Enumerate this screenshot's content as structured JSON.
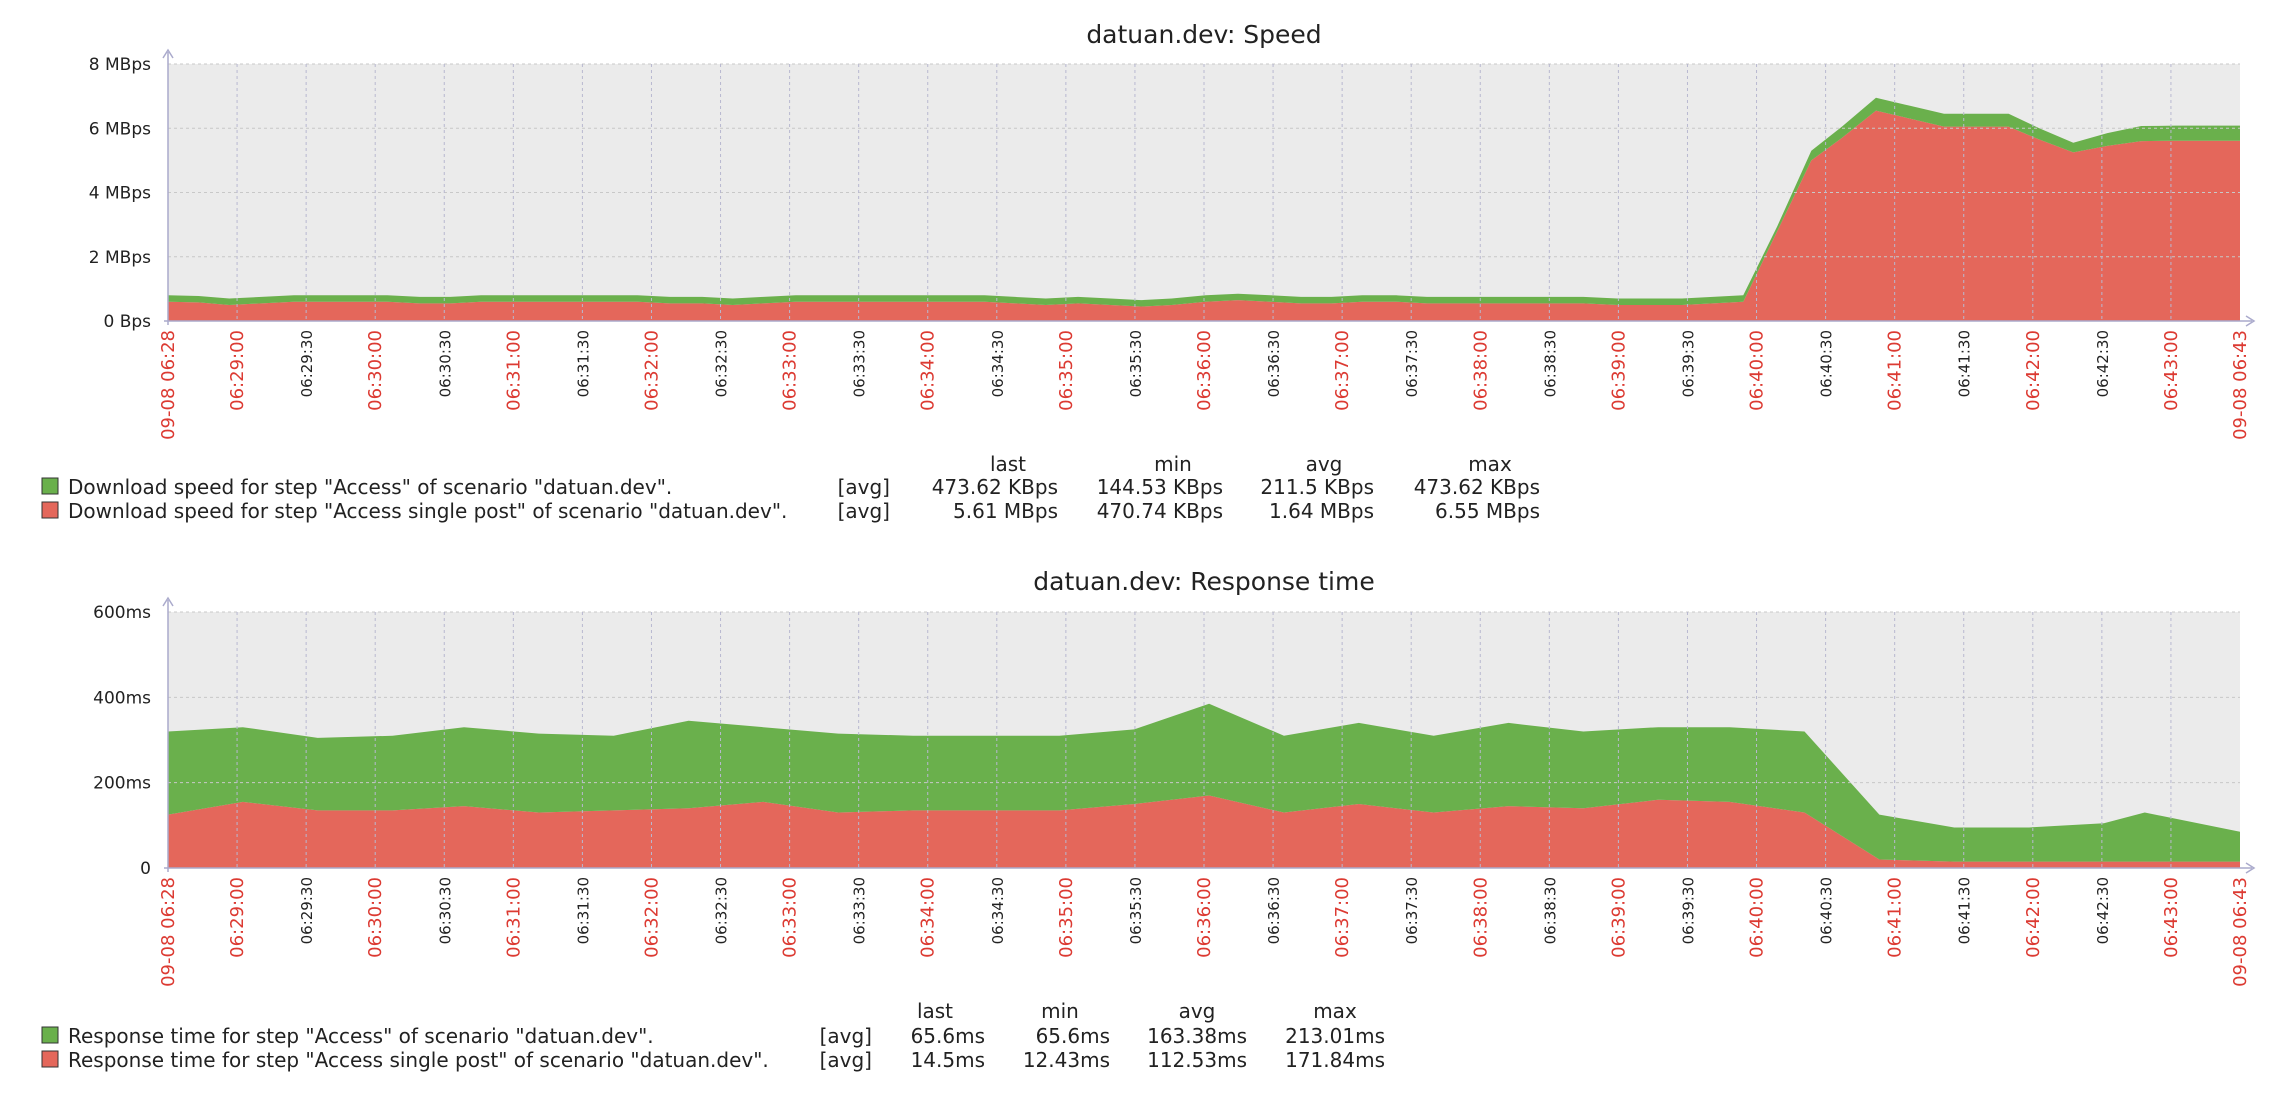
{
  "chart_data": [
    {
      "type": "area",
      "title": "datuan.dev: Speed",
      "stacked": true,
      "y_ticks": [
        "0 Bps",
        "2 MBps",
        "4 MBps",
        "6 MBps",
        "8 MBps"
      ],
      "ylim": [
        0,
        8
      ],
      "x_tick_labels": [
        {
          "label": "09-08 06:28",
          "major": true
        },
        {
          "label": "06:29:00",
          "major": true
        },
        {
          "label": "06:29:30",
          "major": false
        },
        {
          "label": "06:30:00",
          "major": true
        },
        {
          "label": "06:30:30",
          "major": false
        },
        {
          "label": "06:31:00",
          "major": true
        },
        {
          "label": "06:31:30",
          "major": false
        },
        {
          "label": "06:32:00",
          "major": true
        },
        {
          "label": "06:32:30",
          "major": false
        },
        {
          "label": "06:33:00",
          "major": true
        },
        {
          "label": "06:33:30",
          "major": false
        },
        {
          "label": "06:34:00",
          "major": true
        },
        {
          "label": "06:34:30",
          "major": false
        },
        {
          "label": "06:35:00",
          "major": true
        },
        {
          "label": "06:35:30",
          "major": false
        },
        {
          "label": "06:36:00",
          "major": true
        },
        {
          "label": "06:36:30",
          "major": false
        },
        {
          "label": "06:37:00",
          "major": true
        },
        {
          "label": "06:37:30",
          "major": false
        },
        {
          "label": "06:38:00",
          "major": true
        },
        {
          "label": "06:38:30",
          "major": false
        },
        {
          "label": "06:39:00",
          "major": true
        },
        {
          "label": "06:39:30",
          "major": false
        },
        {
          "label": "06:40:00",
          "major": true
        },
        {
          "label": "06:40:30",
          "major": false
        },
        {
          "label": "06:41:00",
          "major": true
        },
        {
          "label": "06:41:30",
          "major": false
        },
        {
          "label": "06:42:00",
          "major": true
        },
        {
          "label": "06:42:30",
          "major": false
        },
        {
          "label": "06:43:00",
          "major": true
        },
        {
          "label": "09-08 06:43",
          "major": true
        }
      ],
      "x_minutes": [
        0,
        0.9,
        1.8,
        2.75,
        3.7,
        4.6,
        5.5,
        6.45,
        7.4,
        8.3,
        9.2,
        10.15,
        11.1,
        12.0,
        12.9,
        13.8,
        14.75,
        15.7,
        16.6,
        17.5,
        18.45,
        19.4,
        20.3,
        21.2,
        22.15,
        23.1,
        24.0,
        24.9,
        25.8,
        26.75,
        27.7,
        28.6,
        29.5,
        30.5,
        31.45,
        32.4,
        33.3,
        34.2,
        35.1,
        36.1,
        37.0,
        38.0,
        38.9,
        39.8,
        40.7,
        41.6,
        42.6,
        43.5,
        44.5,
        45.4,
        46.3,
        47.3,
        48.3,
        49.2,
        50.2,
        51.2,
        52.2,
        53.1,
        54.1,
        55.0,
        56.0,
        57.0,
        58.0,
        59.0,
        60.0,
        60.9
      ],
      "series": [
        {
          "name": "Download speed for step \"Access single post\" of scenario \"datuan.dev\".",
          "color": "#e4675b",
          "values_MBps": [
            0.6,
            0.58,
            0.5,
            0.55,
            0.6,
            0.6,
            0.6,
            0.6,
            0.55,
            0.55,
            0.6,
            0.6,
            0.6,
            0.6,
            0.6,
            0.6,
            0.55,
            0.55,
            0.5,
            0.55,
            0.6,
            0.6,
            0.6,
            0.6,
            0.6,
            0.6,
            0.6,
            0.55,
            0.5,
            0.55,
            0.5,
            0.45,
            0.5,
            0.6,
            0.65,
            0.6,
            0.55,
            0.55,
            0.6,
            0.6,
            0.55,
            0.55,
            0.55,
            0.55,
            0.55,
            0.55,
            0.5,
            0.5,
            0.5,
            0.55,
            0.6,
            2.8,
            5.0,
            5.7,
            6.55,
            6.3,
            6.05,
            6.05,
            6.05,
            5.65,
            5.25,
            5.45,
            5.6,
            5.61,
            5.61,
            5.61
          ]
        },
        {
          "name": "Download speed for step \"Access\" of scenario \"datuan.dev\".",
          "color": "#6ab04c",
          "values_MBps": [
            0.2,
            0.2,
            0.2,
            0.2,
            0.2,
            0.2,
            0.2,
            0.2,
            0.2,
            0.2,
            0.2,
            0.2,
            0.2,
            0.2,
            0.2,
            0.2,
            0.2,
            0.2,
            0.2,
            0.2,
            0.2,
            0.2,
            0.2,
            0.2,
            0.2,
            0.2,
            0.2,
            0.2,
            0.2,
            0.2,
            0.2,
            0.2,
            0.2,
            0.2,
            0.2,
            0.2,
            0.2,
            0.2,
            0.2,
            0.2,
            0.2,
            0.2,
            0.2,
            0.2,
            0.2,
            0.2,
            0.2,
            0.2,
            0.2,
            0.2,
            0.2,
            0.15,
            0.3,
            0.35,
            0.4,
            0.4,
            0.4,
            0.4,
            0.4,
            0.35,
            0.3,
            0.4,
            0.47,
            0.47,
            0.47,
            0.47
          ]
        }
      ],
      "legend_headers": [
        "last",
        "min",
        "avg",
        "max"
      ],
      "legend": [
        {
          "color": "#6ab04c",
          "name": "Download speed for step \"Access\" of scenario \"datuan.dev\".",
          "func": "[avg]",
          "last": "473.62 KBps",
          "min": "144.53 KBps",
          "avg": "211.5 KBps",
          "max": "473.62 KBps"
        },
        {
          "color": "#e4675b",
          "name": "Download speed for step \"Access single post\" of scenario \"datuan.dev\".",
          "func": "[avg]",
          "last": "5.61 MBps",
          "min": "470.74 KBps",
          "avg": "1.64 MBps",
          "max": "6.55 MBps"
        }
      ]
    },
    {
      "type": "area",
      "title": "datuan.dev: Response time",
      "stacked": true,
      "y_ticks": [
        "0",
        "200ms",
        "400ms",
        "600ms"
      ],
      "ylim": [
        0,
        600
      ],
      "x_tick_labels": "same as chart 1",
      "x_minutes": [
        0,
        2.2,
        4.4,
        6.6,
        8.7,
        10.9,
        13.1,
        15.3,
        17.5,
        19.7,
        21.9,
        24.0,
        26.2,
        28.4,
        30.6,
        32.8,
        35.0,
        37.2,
        39.4,
        41.6,
        43.8,
        45.9,
        48.1,
        50.3,
        52.5,
        54.7,
        56.9,
        58.1,
        60.9
      ],
      "series": [
        {
          "name": "Response time for step \"Access single post\" of scenario \"datuan.dev\".",
          "color": "#e4675b",
          "values_ms": [
            125,
            155,
            135,
            135,
            145,
            130,
            135,
            140,
            155,
            130,
            135,
            135,
            135,
            150,
            170,
            130,
            150,
            130,
            145,
            140,
            160,
            155,
            130,
            20,
            15,
            15,
            15,
            15,
            15
          ]
        },
        {
          "name": "Response time for step \"Access\" of scenario \"datuan.dev\".",
          "color": "#6ab04c",
          "values_ms": [
            195,
            175,
            170,
            175,
            185,
            185,
            175,
            205,
            175,
            185,
            175,
            175,
            175,
            175,
            215,
            180,
            190,
            180,
            195,
            180,
            170,
            175,
            190,
            105,
            80,
            80,
            90,
            115,
            70
          ]
        }
      ],
      "legend_headers": [
        "last",
        "min",
        "avg",
        "max"
      ],
      "legend": [
        {
          "color": "#6ab04c",
          "name": "Response time for step \"Access\" of scenario \"datuan.dev\".",
          "func": "[avg]",
          "last": "65.6ms",
          "min": "65.6ms",
          "avg": "163.38ms",
          "max": "213.01ms"
        },
        {
          "color": "#e4675b",
          "name": "Response time for step \"Access single post\" of scenario \"datuan.dev\".",
          "func": "[avg]",
          "last": "14.5ms",
          "min": "12.43ms",
          "avg": "112.53ms",
          "max": "171.84ms"
        }
      ]
    }
  ]
}
